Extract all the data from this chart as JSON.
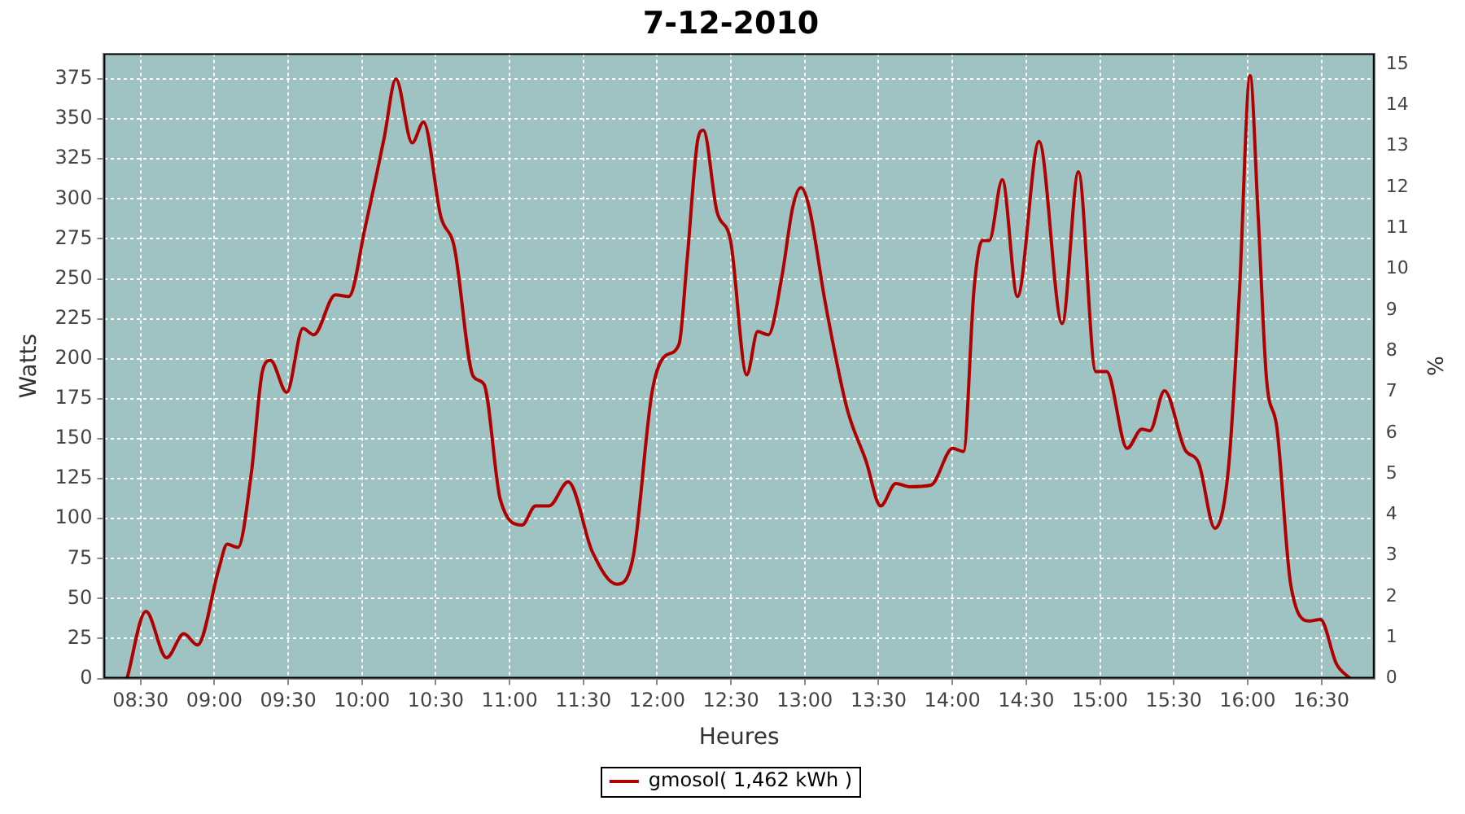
{
  "chart_data": {
    "type": "line",
    "title": "7-12-2010",
    "xlabel": "Heures",
    "ylabel": "Watts",
    "y2label": "%",
    "x": [
      8.408,
      8.536,
      8.676,
      8.793,
      8.885,
      9.031,
      9.087,
      9.16,
      9.251,
      9.325,
      9.38,
      9.49,
      9.6,
      9.673,
      9.82,
      9.911,
      10.021,
      10.15,
      10.23,
      10.34,
      10.417,
      10.534,
      10.625,
      10.754,
      10.827,
      10.937,
      11.084,
      11.176,
      11.268,
      11.397,
      11.562,
      11.727,
      11.837,
      11.965,
      12.057,
      12.148,
      12.203,
      12.277,
      12.313,
      12.405,
      12.497,
      12.607,
      12.681,
      12.753,
      12.846,
      12.919,
      12.974,
      13.029,
      13.139,
      13.286,
      13.415,
      13.514,
      13.617,
      13.709,
      13.855,
      14.002,
      14.075,
      14.148,
      14.203,
      14.25,
      14.338,
      14.441,
      14.587,
      14.744,
      14.854,
      14.972,
      15.045,
      15.184,
      15.283,
      15.338,
      15.437,
      15.577,
      15.668,
      15.778,
      15.871,
      15.944,
      16.017,
      16.072,
      16.127,
      16.2,
      16.292,
      16.42,
      16.493,
      16.603,
      16.695
    ],
    "series": [
      {
        "name": "gmosol( 1,462 kWh )",
        "color": "#b00000",
        "values": [
          0,
          42,
          13,
          28,
          21,
          69,
          84,
          82,
          129,
          192,
          199,
          179,
          219,
          215,
          240,
          239,
          282,
          338,
          375,
          335,
          348,
          289,
          270,
          189,
          184,
          112,
          96,
          108,
          108,
          123,
          79,
          59,
          76,
          179,
          202,
          209,
          262,
          338,
          343,
          292,
          274,
          190,
          217,
          215,
          252,
          295,
          307,
          295,
          235,
          169,
          136,
          108,
          122,
          120,
          121,
          144,
          142,
          245,
          274,
          274,
          312,
          239,
          336,
          222,
          317,
          192,
          192,
          144,
          156,
          155,
          180,
          143,
          135,
          94,
          132,
          240,
          377,
          289,
          189,
          156,
          59,
          36,
          37,
          9,
          0
        ]
      }
    ],
    "xlim": [
      8.25,
      16.86
    ],
    "xticks": [
      {
        "value": 8.5,
        "label": "08:30"
      },
      {
        "value": 9,
        "label": "09:00"
      },
      {
        "value": 9.5,
        "label": "09:30"
      },
      {
        "value": 10,
        "label": "10:00"
      },
      {
        "value": 10.5,
        "label": "10:30"
      },
      {
        "value": 11,
        "label": "11:00"
      },
      {
        "value": 11.5,
        "label": "11:30"
      },
      {
        "value": 12,
        "label": "12:00"
      },
      {
        "value": 12.5,
        "label": "12:30"
      },
      {
        "value": 13,
        "label": "13:00"
      },
      {
        "value": 13.5,
        "label": "13:30"
      },
      {
        "value": 14,
        "label": "14:00"
      },
      {
        "value": 14.5,
        "label": "14:30"
      },
      {
        "value": 15,
        "label": "15:00"
      },
      {
        "value": 15.5,
        "label": "15:30"
      },
      {
        "value": 16,
        "label": "16:00"
      },
      {
        "value": 16.5,
        "label": "16:30"
      }
    ],
    "ylim": [
      0,
      391
    ],
    "yticks": [
      0,
      25,
      50,
      75,
      100,
      125,
      150,
      175,
      200,
      225,
      250,
      275,
      300,
      325,
      350,
      375
    ],
    "y2lim": [
      0,
      15.27
    ],
    "y2ticks": [
      0,
      1,
      2,
      3,
      4,
      5,
      6,
      7,
      8,
      9,
      10,
      11,
      12,
      13,
      14,
      15
    ],
    "grid": true,
    "legend": "bottom",
    "marker": "none",
    "line_style": "solid"
  }
}
